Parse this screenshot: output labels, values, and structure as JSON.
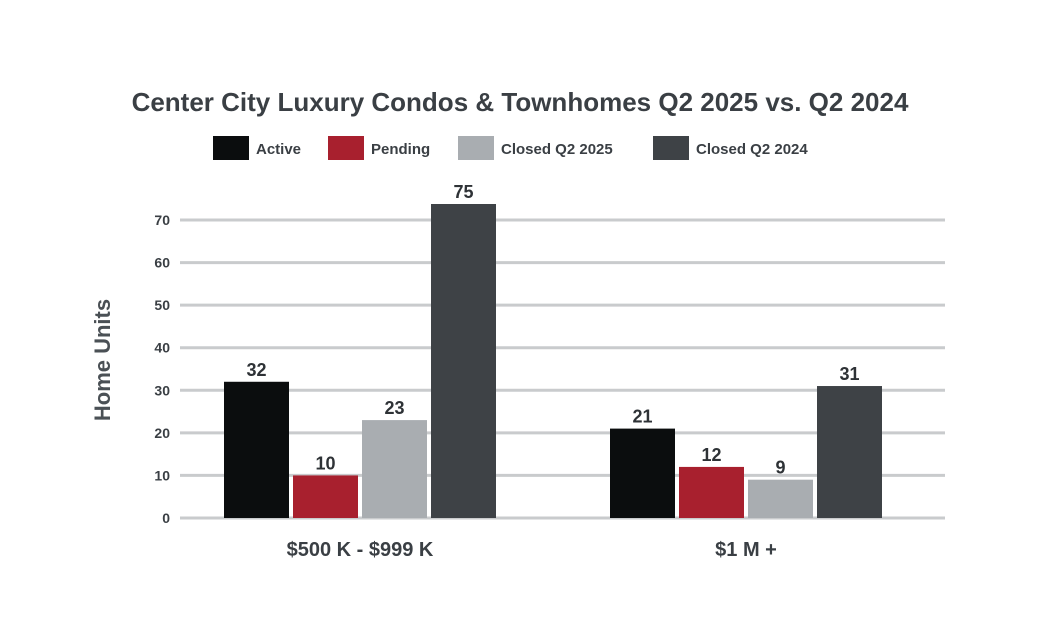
{
  "chart_data": {
    "type": "bar",
    "title": "Center City Luxury Condos & Townhomes Q2 2025 vs. Q2 2024",
    "ylabel": "Home Units",
    "xlabel": "",
    "categories": [
      "$500 K - $999 K",
      "$1 M +"
    ],
    "series": [
      {
        "name": "Active",
        "values": [
          32,
          21
        ],
        "color": "#0b0d0e"
      },
      {
        "name": "Pending",
        "values": [
          10,
          12
        ],
        "color": "#a8202e"
      },
      {
        "name": "Closed Q2 2025",
        "values": [
          23,
          9
        ],
        "color": "#a9adb1"
      },
      {
        "name": "Closed Q2 2024",
        "values": [
          75,
          31
        ],
        "color": "#3e4246"
      }
    ],
    "ylim": [
      0,
      70
    ],
    "yticks": [
      0,
      10,
      20,
      30,
      40,
      50,
      60,
      70
    ],
    "grid": true,
    "legend_position": "top"
  }
}
